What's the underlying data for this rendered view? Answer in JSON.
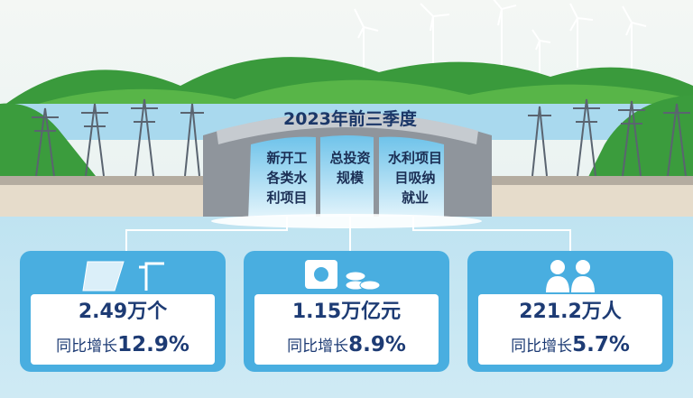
{
  "header": {
    "title": "2023年前三季度"
  },
  "columns": [
    {
      "lines": [
        "新开工",
        "各类水",
        "利项目"
      ]
    },
    {
      "lines": [
        "总投资",
        "规模"
      ]
    },
    {
      "lines": [
        "水利项目",
        "目吸纳",
        "就业"
      ]
    }
  ],
  "cards": [
    {
      "value": "2.49万个",
      "growth_label": "同比增长",
      "growth": "12.9%"
    },
    {
      "value": "1.15万亿元",
      "growth_label": "同比增长",
      "growth": "8.9%"
    },
    {
      "value": "221.2万人",
      "growth_label": "同比增长",
      "growth": "5.7%"
    }
  ]
}
